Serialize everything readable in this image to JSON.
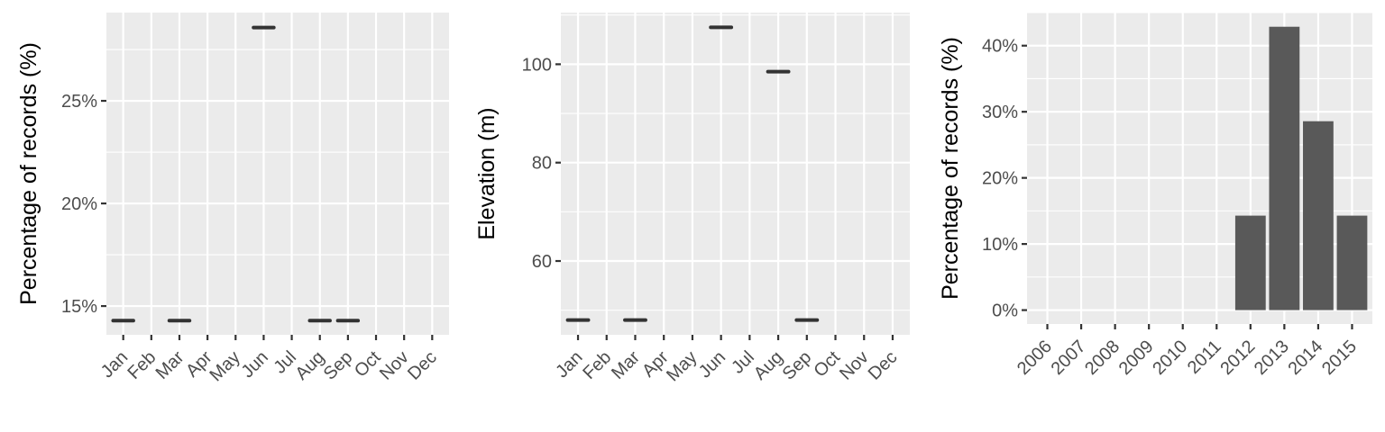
{
  "chart_data": [
    {
      "type": "scatter",
      "title": "",
      "xlabel": "",
      "ylabel": "Percentage of records (%)",
      "categories": [
        "Jan",
        "Feb",
        "Mar",
        "Apr",
        "May",
        "Jun",
        "Jul",
        "Aug",
        "Sep",
        "Oct",
        "Nov",
        "Dec"
      ],
      "yticks": [
        15,
        20,
        25
      ],
      "ytick_labels": [
        "15%",
        "20%",
        "25%"
      ],
      "ylim": [
        13.6,
        29.3
      ],
      "points": [
        {
          "x": "Jan",
          "y": 14.29
        },
        {
          "x": "Mar",
          "y": 14.29
        },
        {
          "x": "Jun",
          "y": 28.57
        },
        {
          "x": "Aug",
          "y": 14.29
        },
        {
          "x": "Sep",
          "y": 14.29
        }
      ]
    },
    {
      "type": "scatter",
      "title": "",
      "xlabel": "",
      "ylabel": "Elevation (m)",
      "categories": [
        "Jan",
        "Feb",
        "Mar",
        "Apr",
        "May",
        "Jun",
        "Jul",
        "Aug",
        "Sep",
        "Oct",
        "Nov",
        "Dec"
      ],
      "yticks": [
        60,
        80,
        100
      ],
      "ytick_labels": [
        "60",
        "80",
        "100"
      ],
      "ylim": [
        45,
        110.5
      ],
      "points": [
        {
          "x": "Jan",
          "y": 48
        },
        {
          "x": "Mar",
          "y": 48
        },
        {
          "x": "Jun",
          "y": 107.5
        },
        {
          "x": "Aug",
          "y": 98.5
        },
        {
          "x": "Sep",
          "y": 48
        }
      ]
    },
    {
      "type": "bar",
      "title": "",
      "xlabel": "",
      "ylabel": "Percentage of records (%)",
      "categories": [
        "2006",
        "2007",
        "2008",
        "2009",
        "2010",
        "2011",
        "2012",
        "2013",
        "2014",
        "2015"
      ],
      "values": [
        0,
        0,
        0,
        0,
        0,
        0,
        14.29,
        42.86,
        28.57,
        14.29
      ],
      "yticks": [
        0,
        10,
        20,
        30,
        40
      ],
      "ytick_labels": [
        "0%",
        "10%",
        "20%",
        "30%",
        "40%"
      ],
      "ylim": [
        -2.1,
        45
      ]
    }
  ]
}
